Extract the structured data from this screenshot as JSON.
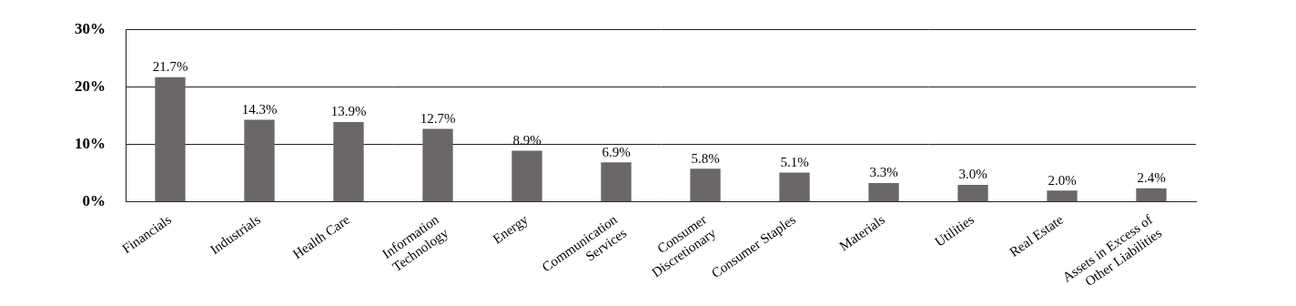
{
  "chart_data": {
    "type": "bar",
    "categories": [
      "Financials",
      "Industrials",
      "Health Care",
      "Information Technology",
      "Energy",
      "Communication Services",
      "Consumer Discretionary",
      "Consumer Staples",
      "Materials",
      "Utilities",
      "Real Estate",
      "Assets in Excess of Other Liabilities"
    ],
    "values": [
      21.7,
      14.3,
      13.9,
      12.7,
      8.9,
      6.9,
      5.8,
      5.1,
      3.3,
      3.0,
      2.0,
      2.4
    ],
    "value_labels": [
      "21.7%",
      "14.3%",
      "13.9%",
      "12.7%",
      "8.9%",
      "6.9%",
      "5.8%",
      "5.1%",
      "3.3%",
      "3.0%",
      "2.0%",
      "2.4%"
    ],
    "color": "#6b6767",
    "ylim": [
      0,
      30
    ],
    "yticks": [
      {
        "value": 0,
        "label": "0%"
      },
      {
        "value": 10,
        "label": "10%"
      },
      {
        "value": 20,
        "label": "20%"
      },
      {
        "value": 30,
        "label": "30%"
      }
    ],
    "grid": true,
    "data_labels": true
  }
}
